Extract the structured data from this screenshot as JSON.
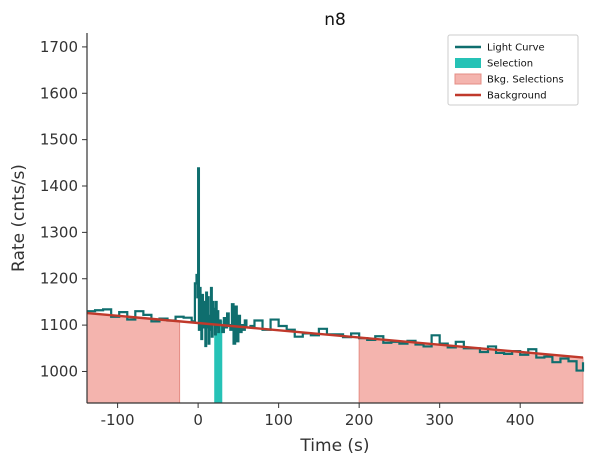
{
  "chart_data": {
    "type": "line",
    "title": "n8",
    "xlabel": "Time (s)",
    "ylabel": "Rate (cnts/s)",
    "xlim": [
      -138,
      478
    ],
    "ylim": [
      932,
      1730
    ],
    "xticks": [
      -100,
      0,
      100,
      200,
      300,
      400
    ],
    "yticks": [
      1000,
      1100,
      1200,
      1300,
      1400,
      1500,
      1600,
      1700
    ],
    "grid": false,
    "legend_position": "top-right",
    "colors": {
      "light_curve": "#0f6e6e",
      "selection": "#26c2b6",
      "bkg_selection_fill": "#f4b4ae",
      "bkg_selection_edge": "#e58c84",
      "background": "#c0392b",
      "axis": "#333333"
    },
    "legend": [
      {
        "label": "Light Curve",
        "kind": "line",
        "color": "#0f6e6e"
      },
      {
        "label": "Selection",
        "kind": "patch",
        "color": "#26c2b6"
      },
      {
        "label": "Bkg. Selections",
        "kind": "patch",
        "color": "#f4b4ae"
      },
      {
        "label": "Background",
        "kind": "line",
        "color": "#c0392b"
      }
    ],
    "series": [
      {
        "name": "Light Curve",
        "kind": "step",
        "x": [
          -138,
          -128,
          -118,
          -108,
          -98,
          -88,
          -78,
          -68,
          -58,
          -48,
          -38,
          -28,
          -18,
          -8,
          -4,
          -2,
          -1,
          0,
          1,
          2,
          3,
          4,
          5,
          6,
          7,
          8,
          9,
          10,
          11,
          12,
          13,
          14,
          15,
          16,
          17,
          18,
          19,
          20,
          21,
          22,
          23,
          24,
          25,
          26,
          27,
          28,
          30,
          32,
          34,
          36,
          38,
          40,
          42,
          44,
          46,
          48,
          50,
          52,
          54,
          56,
          58,
          60,
          65,
          70,
          80,
          90,
          100,
          110,
          120,
          130,
          140,
          150,
          160,
          170,
          180,
          190,
          200,
          210,
          220,
          230,
          240,
          250,
          260,
          270,
          280,
          290,
          300,
          310,
          320,
          330,
          340,
          350,
          360,
          370,
          380,
          390,
          400,
          410,
          420,
          430,
          440,
          450,
          460,
          470,
          478
        ],
        "y": [
          1130,
          1132,
          1134,
          1118,
          1128,
          1112,
          1130,
          1122,
          1108,
          1114,
          1110,
          1118,
          1116,
          1108,
          1190,
          1208,
          1160,
          1438,
          1090,
          1180,
          1120,
          1070,
          1165,
          1120,
          1095,
          1150,
          1055,
          1170,
          1095,
          1160,
          1060,
          1120,
          1090,
          1180,
          1075,
          1150,
          1105,
          1135,
          1080,
          1150,
          1095,
          1130,
          1085,
          1105,
          1110,
          1100,
          1085,
          1115,
          1095,
          1125,
          1100,
          1090,
          1145,
          1060,
          1140,
          1065,
          1120,
          1085,
          1100,
          1090,
          1110,
          1095,
          1098,
          1110,
          1090,
          1112,
          1098,
          1090,
          1075,
          1082,
          1078,
          1092,
          1080,
          1080,
          1074,
          1082,
          1072,
          1068,
          1076,
          1062,
          1064,
          1060,
          1066,
          1058,
          1054,
          1078,
          1060,
          1052,
          1064,
          1050,
          1050,
          1042,
          1054,
          1040,
          1038,
          1044,
          1036,
          1048,
          1030,
          1032,
          1020,
          1028,
          1022,
          1002,
          1020
        ]
      },
      {
        "name": "Background",
        "kind": "line",
        "x": [
          -138,
          478
        ],
        "y": [
          1126,
          1030
        ]
      }
    ],
    "selection": {
      "x": [
        20,
        30
      ],
      "label": "Selection"
    },
    "bkg_selections": [
      {
        "x": [
          -138,
          -23
        ],
        "label": "Bkg. Selections"
      },
      {
        "x": [
          200,
          478
        ],
        "label": "Bkg. Selections"
      }
    ]
  }
}
